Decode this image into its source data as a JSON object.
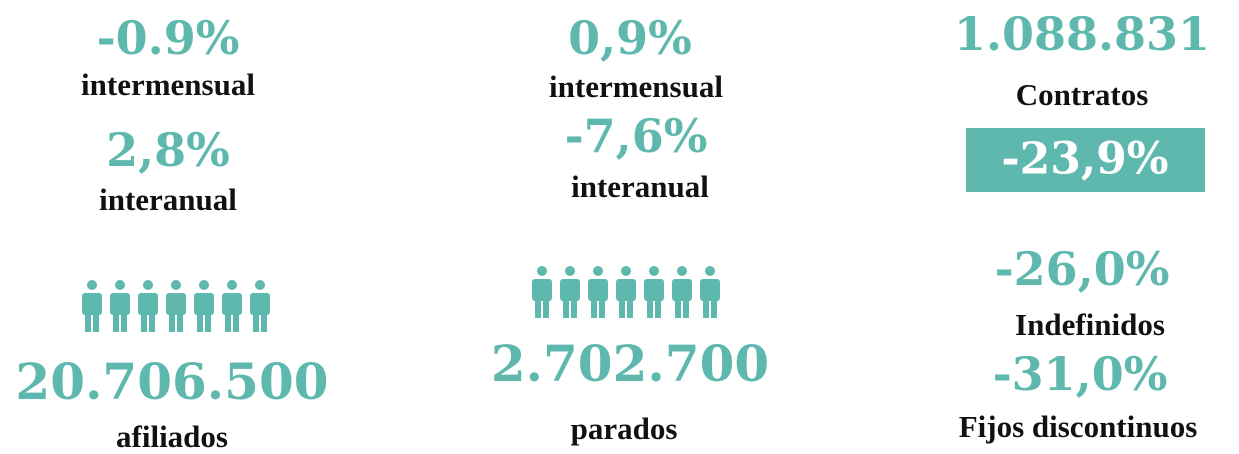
{
  "columns": [
    {
      "monthly_value": "-0.9%",
      "monthly_label": "intermensual",
      "yearly_value": "2,8%",
      "yearly_label": "interanual",
      "total": "20.706.500",
      "total_label": "afiliados"
    },
    {
      "monthly_value": "0,9%",
      "monthly_label": "intermensual",
      "yearly_value": "-7,6%",
      "yearly_label": "interanual",
      "total": "2.702.700",
      "total_label": "parados"
    }
  ],
  "contracts": {
    "total": "1.088.831",
    "total_label": "Contratos",
    "change": "-23,9%",
    "items": [
      {
        "value": "-26,0%",
        "label": "Indefinidos"
      },
      {
        "value": "-31,0%",
        "label": "Fijos discontinuos"
      }
    ]
  }
}
